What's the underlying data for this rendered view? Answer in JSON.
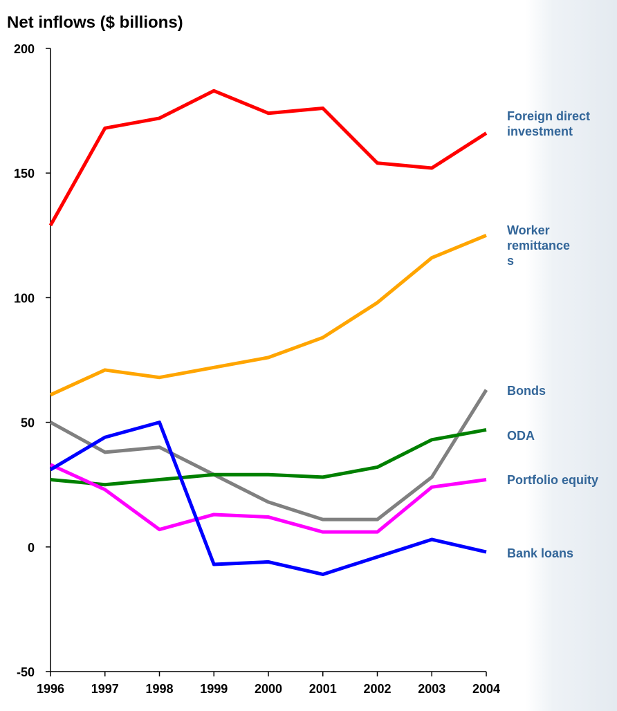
{
  "chart_data": {
    "type": "line",
    "title": "Net inflows ($ billions)",
    "categories": [
      "1996",
      "1997",
      "1998",
      "1999",
      "2000",
      "2001",
      "2002",
      "2003",
      "2004"
    ],
    "ylim": [
      -50,
      200
    ],
    "yticks": [
      -50,
      0,
      50,
      100,
      150,
      200
    ],
    "series": [
      {
        "name": "Foreign direct investment",
        "color": "#ff0000",
        "values": [
          129,
          168,
          172,
          183,
          174,
          176,
          154,
          152,
          166
        ]
      },
      {
        "name": "Worker remittances",
        "color": "#ffa500",
        "values": [
          61,
          71,
          68,
          72,
          76,
          84,
          98,
          116,
          125
        ]
      },
      {
        "name": "Bonds",
        "color": "#808080",
        "values": [
          50,
          38,
          40,
          29,
          18,
          11,
          11,
          28,
          63
        ]
      },
      {
        "name": "ODA",
        "color": "#008000",
        "values": [
          27,
          25,
          27,
          29,
          29,
          28,
          32,
          43,
          47
        ]
      },
      {
        "name": "Portfolio equity",
        "color": "#ff00ff",
        "values": [
          33,
          23,
          7,
          13,
          12,
          6,
          6,
          24,
          27
        ]
      },
      {
        "name": "Bank loans",
        "color": "#0000ff",
        "values": [
          31,
          44,
          50,
          -7,
          -6,
          -11,
          -4,
          3,
          -2
        ]
      }
    ]
  }
}
